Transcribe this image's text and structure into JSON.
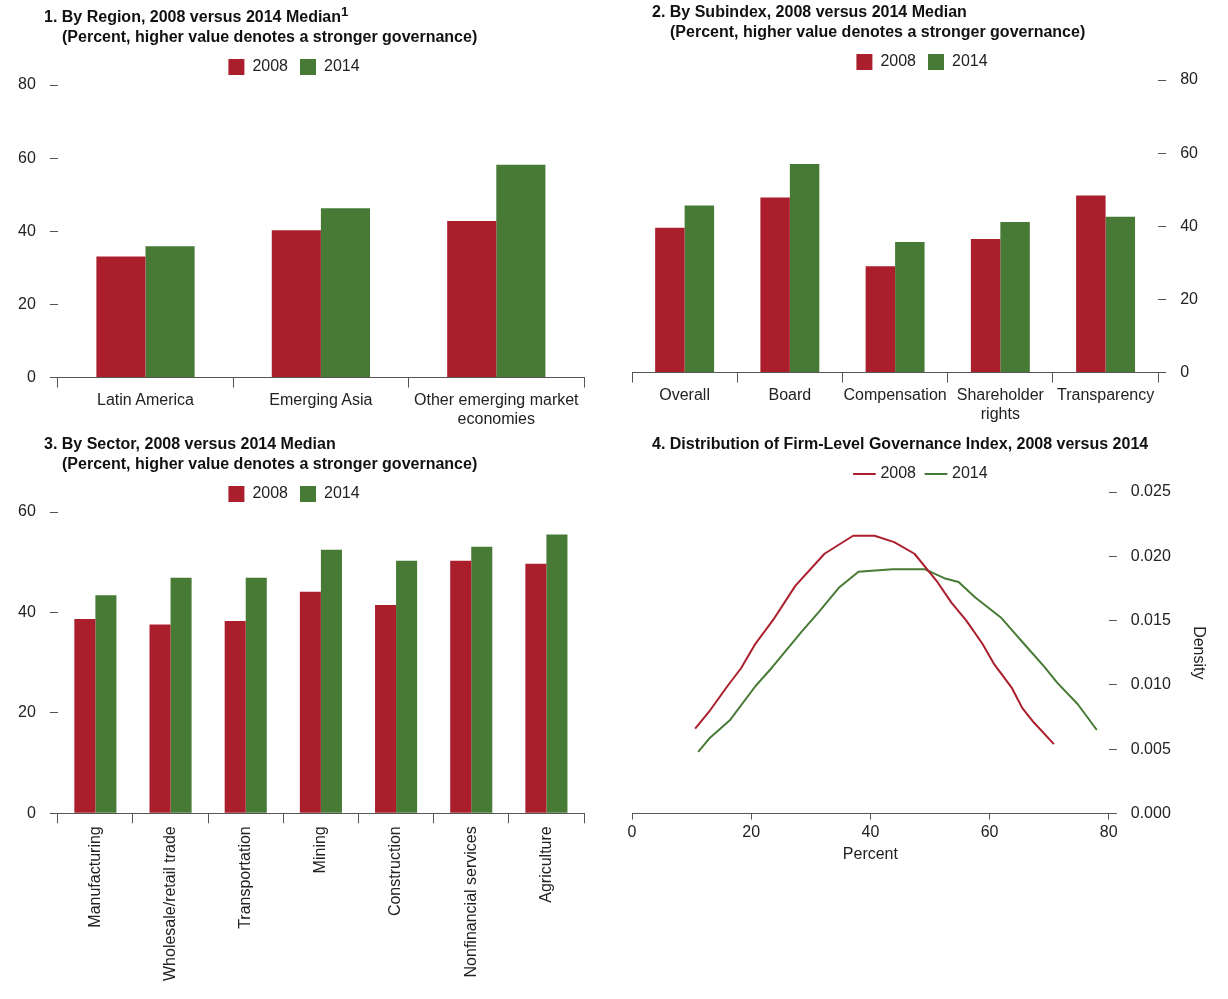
{
  "chart_data": [
    {
      "type": "bar",
      "title": "1. By Region, 2008 versus 2014 Median$^{1}$",
      "subtitle": "(Percent, higher value denotes a stronger governance)",
      "categories": [
        "Latin America",
        "Emerging Asia",
        "Other emerging market economies"
      ],
      "series": [
        {
          "name": "2008",
          "color": "#ab1f2d",
          "values": [
            33.1,
            40.3,
            42.8
          ]
        },
        {
          "name": "2014",
          "color": "#477a35",
          "values": [
            35.9,
            46.3,
            58.2
          ]
        }
      ],
      "ylim": [
        0,
        80
      ],
      "yticks": [
        0,
        20,
        40,
        60,
        80
      ],
      "grid": false,
      "legend": "top"
    },
    {
      "type": "bar",
      "title": "2. By Subindex, 2008 versus 2014 Median",
      "subtitle": "(Percent, higher value denotes a stronger governance)",
      "categories": [
        "Overall",
        "Board",
        "Compensation",
        "Shareholder rights",
        "Transparency"
      ],
      "series": [
        {
          "name": "2008",
          "color": "#ab1f2d",
          "axis": "y2",
          "values": [
            39.6,
            47.9,
            29.1,
            36.5,
            48.4
          ]
        },
        {
          "name": "2014",
          "color": "#477a35",
          "axis": "y2",
          "values": [
            45.7,
            57.0,
            35.7,
            41.2,
            42.6
          ]
        }
      ],
      "y2lim": [
        0,
        80
      ],
      "y2ticks": [
        0,
        20,
        40,
        60,
        80
      ],
      "grid": false,
      "legend": "top"
    },
    {
      "type": "bar",
      "title": "3. By Sector, 2008 versus 2014 Median",
      "subtitle": "(Percent, higher value denotes a stronger governance)",
      "categories": [
        "Manufacturing",
        "Wholesale/retail trade",
        "Transportation",
        "Mining",
        "Construction",
        "Nonfinancial services",
        "Agriculture"
      ],
      "series": [
        {
          "name": "2008",
          "color": "#ab1f2d",
          "values": [
            38.7,
            37.6,
            38.3,
            44.1,
            41.5,
            50.3,
            49.7
          ]
        },
        {
          "name": "2014",
          "color": "#477a35",
          "values": [
            43.4,
            46.9,
            46.9,
            52.5,
            50.3,
            53.1,
            55.5
          ]
        }
      ],
      "ylim": [
        0,
        60
      ],
      "yticks": [
        0,
        20,
        40,
        60
      ],
      "grid": false,
      "legend": "top"
    },
    {
      "type": "line",
      "title": "4. Distribution of Firm-Level Governance Index, 2008 versus 2014",
      "xlabel": "Percent",
      "y2label": "Density",
      "series": [
        {
          "name": "2008",
          "color": "#ab1f2d",
          "axis": "y2",
          "x": [
            10.6,
            12.9,
            16.0,
            18.3,
            20.7,
            23.9,
            27.4,
            32.3,
            37.1,
            40.7,
            44.0,
            47.4,
            51.1,
            53.6,
            56.1,
            58.8,
            60.8,
            63.7,
            65.5,
            67.4,
            70.8
          ],
          "values": [
            0.0066,
            0.0079,
            0.0099,
            0.0113,
            0.0132,
            0.0152,
            0.0177,
            0.0202,
            0.0216,
            0.0216,
            0.0211,
            0.0202,
            0.0181,
            0.0164,
            0.015,
            0.0132,
            0.0116,
            0.0098,
            0.0082,
            0.0071,
            0.0054
          ]
        },
        {
          "name": "2014",
          "color": "#477a35",
          "axis": "y2",
          "x": [
            11.1,
            13.1,
            16.5,
            20.7,
            23.4,
            28.4,
            31.4,
            34.8,
            38.0,
            43.7,
            49.1,
            52.4,
            54.8,
            57.6,
            62.0,
            65.4,
            69.2,
            71.3,
            74.8,
            78.0
          ],
          "values": [
            0.0048,
            0.0059,
            0.0073,
            0.0099,
            0.0113,
            0.0141,
            0.0157,
            0.0176,
            0.0188,
            0.019,
            0.019,
            0.0183,
            0.018,
            0.0168,
            0.0152,
            0.0134,
            0.0114,
            0.0102,
            0.0085,
            0.0065
          ]
        }
      ],
      "xlim": [
        0,
        80
      ],
      "xticks": [
        0,
        20,
        40,
        60,
        80
      ],
      "y2lim": [
        0,
        0.025
      ],
      "y2ticks": [
        {
          "value": 0,
          "label": "0.000"
        },
        {
          "value": 0.005,
          "label": "0.005"
        },
        {
          "value": 0.01,
          "label": "0.010"
        },
        {
          "value": 0.015,
          "label": "0.015"
        },
        {
          "value": 0.02,
          "label": "0.020"
        },
        {
          "value": 0.025,
          "label": "0.025"
        }
      ],
      "grid": false,
      "legend": "top",
      "marker": "none",
      "line_style": "solid"
    }
  ]
}
